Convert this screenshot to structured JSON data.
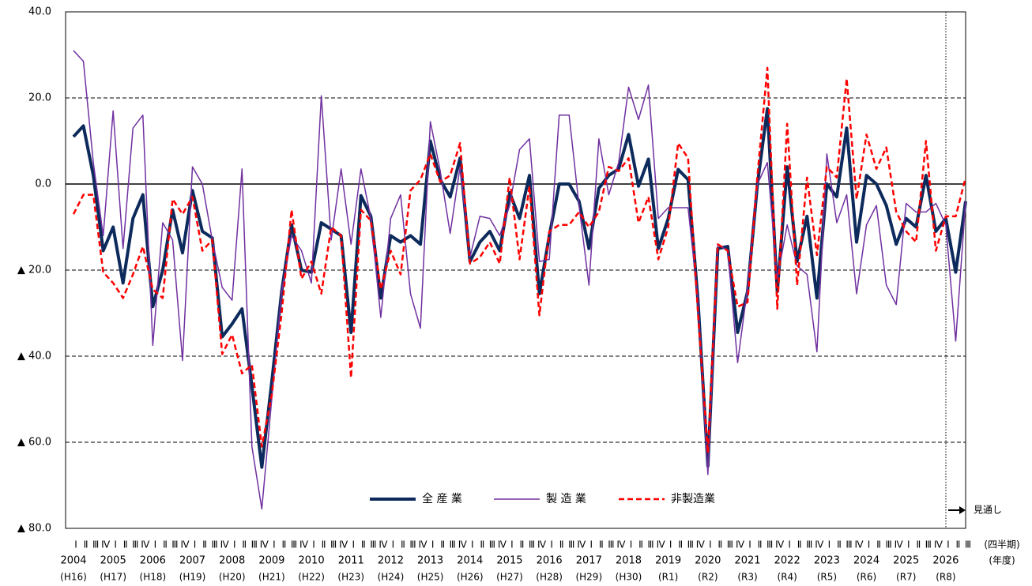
{
  "chart_data": {
    "type": "line",
    "categories": [
      "Ⅰ",
      "Ⅱ",
      "Ⅲ",
      "Ⅳ",
      "Ⅰ",
      "Ⅱ",
      "Ⅲ",
      "Ⅳ",
      "Ⅰ",
      "Ⅱ",
      "Ⅲ",
      "Ⅳ",
      "Ⅰ",
      "Ⅱ",
      "Ⅲ",
      "Ⅳ",
      "Ⅰ",
      "Ⅱ",
      "Ⅲ",
      "Ⅳ",
      "Ⅰ",
      "Ⅱ",
      "Ⅲ",
      "Ⅳ",
      "Ⅰ",
      "Ⅱ",
      "Ⅲ",
      "Ⅳ",
      "Ⅰ",
      "Ⅱ",
      "Ⅲ",
      "Ⅳ",
      "Ⅰ",
      "Ⅱ",
      "Ⅲ",
      "Ⅳ",
      "Ⅰ",
      "Ⅱ",
      "Ⅲ",
      "Ⅳ",
      "Ⅰ",
      "Ⅱ",
      "Ⅲ",
      "Ⅳ",
      "Ⅰ",
      "Ⅱ",
      "Ⅲ",
      "Ⅳ",
      "Ⅰ",
      "Ⅱ",
      "Ⅲ",
      "Ⅳ",
      "Ⅰ",
      "Ⅱ",
      "Ⅲ",
      "Ⅳ",
      "Ⅰ",
      "Ⅱ",
      "Ⅲ",
      "Ⅳ",
      "Ⅰ",
      "Ⅱ",
      "Ⅲ",
      "Ⅳ",
      "Ⅰ",
      "Ⅱ",
      "Ⅲ",
      "Ⅳ",
      "Ⅰ",
      "Ⅱ",
      "Ⅲ",
      "Ⅳ",
      "Ⅰ",
      "Ⅱ",
      "Ⅲ",
      "Ⅳ",
      "Ⅰ",
      "Ⅱ",
      "Ⅲ",
      "Ⅳ",
      "Ⅰ",
      "Ⅱ",
      "Ⅲ",
      "Ⅳ",
      "Ⅰ",
      "Ⅱ",
      "Ⅲ",
      "Ⅳ",
      "Ⅰ",
      "Ⅱ",
      "Ⅲ"
    ],
    "year_groups": [
      {
        "label": "2004",
        "sublabel": "(H16)"
      },
      {
        "label": "2005",
        "sublabel": "(H17)"
      },
      {
        "label": "2006",
        "sublabel": "(H18)"
      },
      {
        "label": "2007",
        "sublabel": "(H19)"
      },
      {
        "label": "2008",
        "sublabel": "(H20)"
      },
      {
        "label": "2009",
        "sublabel": "(H21)"
      },
      {
        "label": "2010",
        "sublabel": "(H22)"
      },
      {
        "label": "2011",
        "sublabel": "(H23)"
      },
      {
        "label": "2012",
        "sublabel": "(H24)"
      },
      {
        "label": "2013",
        "sublabel": "(H25)"
      },
      {
        "label": "2014",
        "sublabel": "(H26)"
      },
      {
        "label": "2015",
        "sublabel": "(H27)"
      },
      {
        "label": "2016",
        "sublabel": "(H28)"
      },
      {
        "label": "2017",
        "sublabel": "(H29)"
      },
      {
        "label": "2018",
        "sublabel": "(H30)"
      },
      {
        "label": "2019",
        "sublabel": "(R1)"
      },
      {
        "label": "2020",
        "sublabel": "(R2)"
      },
      {
        "label": "2021",
        "sublabel": "(R3)"
      },
      {
        "label": "2022",
        "sublabel": "(R4)"
      },
      {
        "label": "2023",
        "sublabel": "(R5)"
      },
      {
        "label": "2024",
        "sublabel": "(R6)"
      },
      {
        "label": "2025",
        "sublabel": "(R7)"
      },
      {
        "label": "2026",
        "sublabel": "(R8)"
      }
    ],
    "x_unit_label": "(四半期)",
    "x_group_unit_label": "(年度)",
    "forecast_label": "見通し",
    "series": [
      {
        "name": "全 産 業",
        "color": "#0d2a5c",
        "style": "solid",
        "width": 4,
        "values": [
          11,
          13.5,
          2,
          -15.5,
          -10,
          -23,
          -8,
          -2.5,
          -28.5,
          -20,
          -6,
          -16,
          -1.5,
          -11,
          -12.5,
          -35.5,
          -32.5,
          -29,
          -47,
          -65.8,
          -46,
          -25,
          -9.5,
          -20,
          -20.5,
          -9,
          -10.5,
          -12,
          -34.5,
          -2.7,
          -7.5,
          -26.5,
          -12,
          -13.5,
          -12,
          -14,
          10,
          1,
          -3,
          6,
          -18,
          -13.5,
          -11,
          -15.5,
          -2,
          -8,
          2,
          -25.5,
          -12,
          0,
          0,
          -4,
          -15,
          -1,
          2,
          3.5,
          11.5,
          -0.5,
          5.8,
          -15,
          -8,
          3.4,
          1,
          -27,
          -65.5,
          -15,
          -14.5,
          -34.5,
          -25,
          0,
          17.5,
          -25,
          4,
          -18,
          -7.5,
          -26.5,
          0,
          -3,
          13,
          -13.5,
          2,
          0,
          -5,
          -14,
          -8,
          -10,
          2,
          -11,
          -8,
          -20.5,
          -4
        ]
      },
      {
        "name": "製 造 業",
        "color": "#7030a0",
        "style": "solid",
        "width": 1.5,
        "values": [
          31,
          28.5,
          5,
          -12,
          17,
          -15,
          13,
          16,
          -37.5,
          -9,
          -13,
          -41,
          4,
          0,
          -13,
          -24,
          -27,
          3.5,
          -61,
          -75.5,
          -50,
          -25,
          -12,
          -15.5,
          -23,
          20.5,
          -13,
          3.5,
          -14,
          3.5,
          -8,
          -31,
          -8,
          -2.5,
          -25.5,
          -33.5,
          14.5,
          3,
          -11.5,
          4,
          -17,
          -7.5,
          -8,
          -12,
          -5,
          8,
          10.5,
          -18,
          -17.5,
          16,
          16,
          -5,
          -23.5,
          10.5,
          -2.5,
          5,
          22.5,
          15,
          23,
          -8,
          -5.5,
          -5.5,
          -5.5,
          -27,
          -67.5,
          -14,
          -15.5,
          -41.5,
          -24,
          0,
          5,
          -22,
          -9.5,
          -19,
          -21,
          -39,
          7,
          -9,
          -2.5,
          -25.5,
          -9.5,
          -5,
          -23.5,
          -28,
          -4.5,
          -6.5,
          -6.5,
          -4.5,
          -9.5,
          -36.5,
          -4
        ]
      },
      {
        "name": "非製造業",
        "color": "#ff0000",
        "style": "dashed",
        "width": 2.5,
        "values": [
          -7,
          -2.5,
          -2.5,
          -20.5,
          -23,
          -26.5,
          -21,
          -14.5,
          -24.5,
          -26.5,
          -3.5,
          -7,
          -3,
          -15.5,
          -13,
          -39.5,
          -35,
          -44,
          -42,
          -61,
          -49,
          -30,
          -6,
          -22,
          -18,
          -25.5,
          -10,
          -12,
          -45,
          -6,
          -8.5,
          -24.5,
          -15.5,
          -21,
          -1.5,
          1,
          7,
          0.5,
          2,
          9.5,
          -18.5,
          -17,
          -13.5,
          -18.5,
          1.5,
          -17.5,
          -0.5,
          -30.5,
          -11,
          -9.5,
          -9.5,
          -6.5,
          -10,
          -6.5,
          4,
          3,
          6,
          -9,
          -3,
          -17.5,
          -10,
          9.5,
          6,
          -30,
          -62.5,
          -14,
          -15.5,
          -28.5,
          -27.5,
          2,
          27,
          -29,
          14,
          -23.5,
          1.5,
          -16.5,
          4,
          1.5,
          24.5,
          -3.5,
          11.5,
          3.5,
          8.5,
          -6.5,
          -11,
          -13.5,
          10,
          -15.5,
          -7.5,
          -7.5,
          1.5
        ]
      }
    ],
    "ylim": [
      -80,
      40
    ],
    "yticks": [
      {
        "value": -80,
        "label": "▲ 80.0"
      },
      {
        "value": -60,
        "label": "▲ 60.0"
      },
      {
        "value": -40,
        "label": "▲ 40.0"
      },
      {
        "value": -20,
        "label": "▲ 20.0"
      },
      {
        "value": 0,
        "label": "0.0"
      },
      {
        "value": 20,
        "label": "20.0"
      },
      {
        "value": 40,
        "label": "40.0"
      }
    ],
    "grid": true
  }
}
